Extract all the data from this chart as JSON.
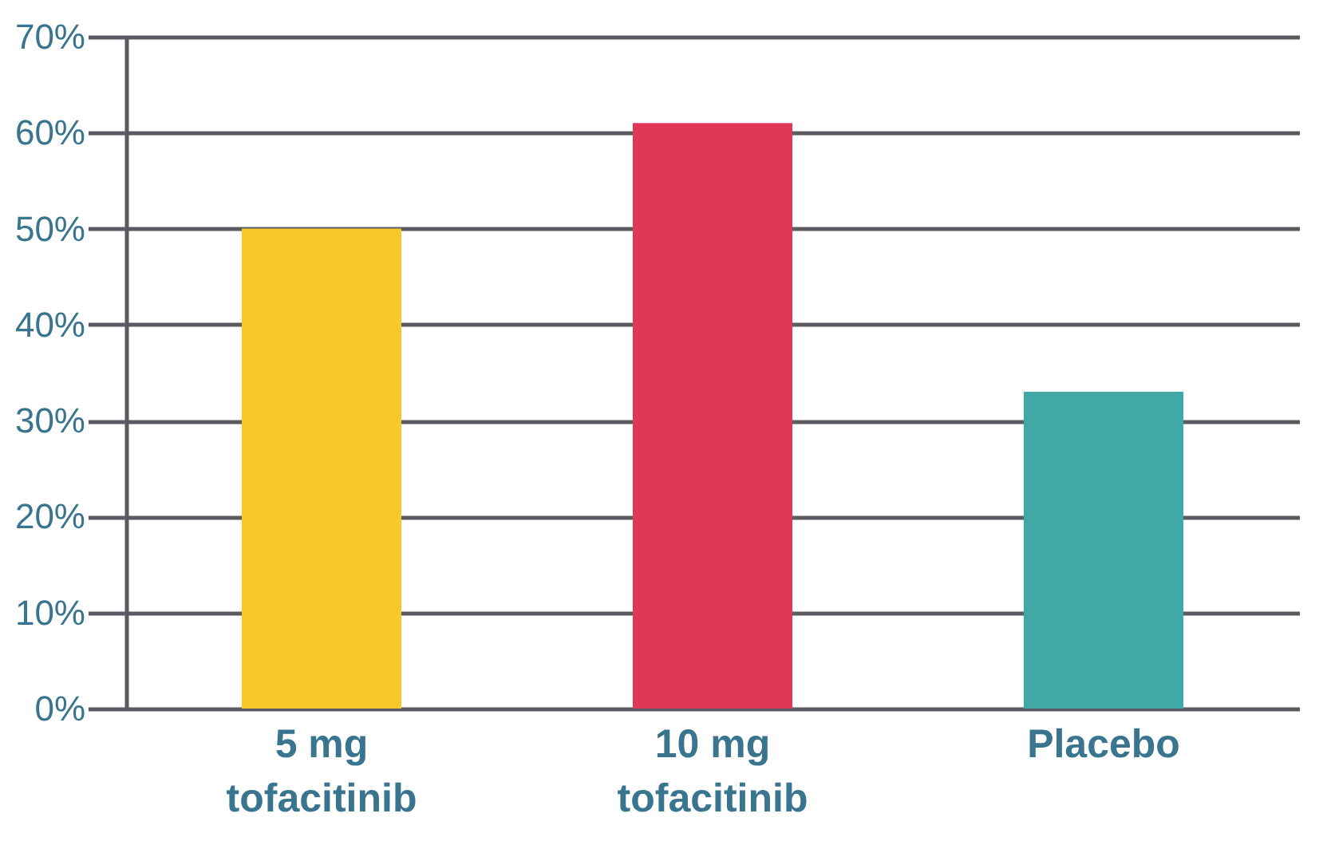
{
  "chart_data": {
    "type": "bar",
    "categories": [
      "5 mg tofacitinib",
      "10 mg tofacitinib",
      "Placebo"
    ],
    "values": [
      50,
      61,
      33
    ],
    "colors": [
      "#f7c829",
      "#e03757",
      "#41a8a8"
    ],
    "ylim": [
      0,
      70
    ],
    "yticks": [
      {
        "value": 0,
        "label": "0%"
      },
      {
        "value": 10,
        "label": "10%"
      },
      {
        "value": 20,
        "label": "20%"
      },
      {
        "value": 30,
        "label": "30%"
      },
      {
        "value": 40,
        "label": "40%"
      },
      {
        "value": 50,
        "label": "50%"
      },
      {
        "value": 60,
        "label": "60%"
      },
      {
        "value": 70,
        "label": "70%"
      }
    ],
    "grid": "y"
  }
}
